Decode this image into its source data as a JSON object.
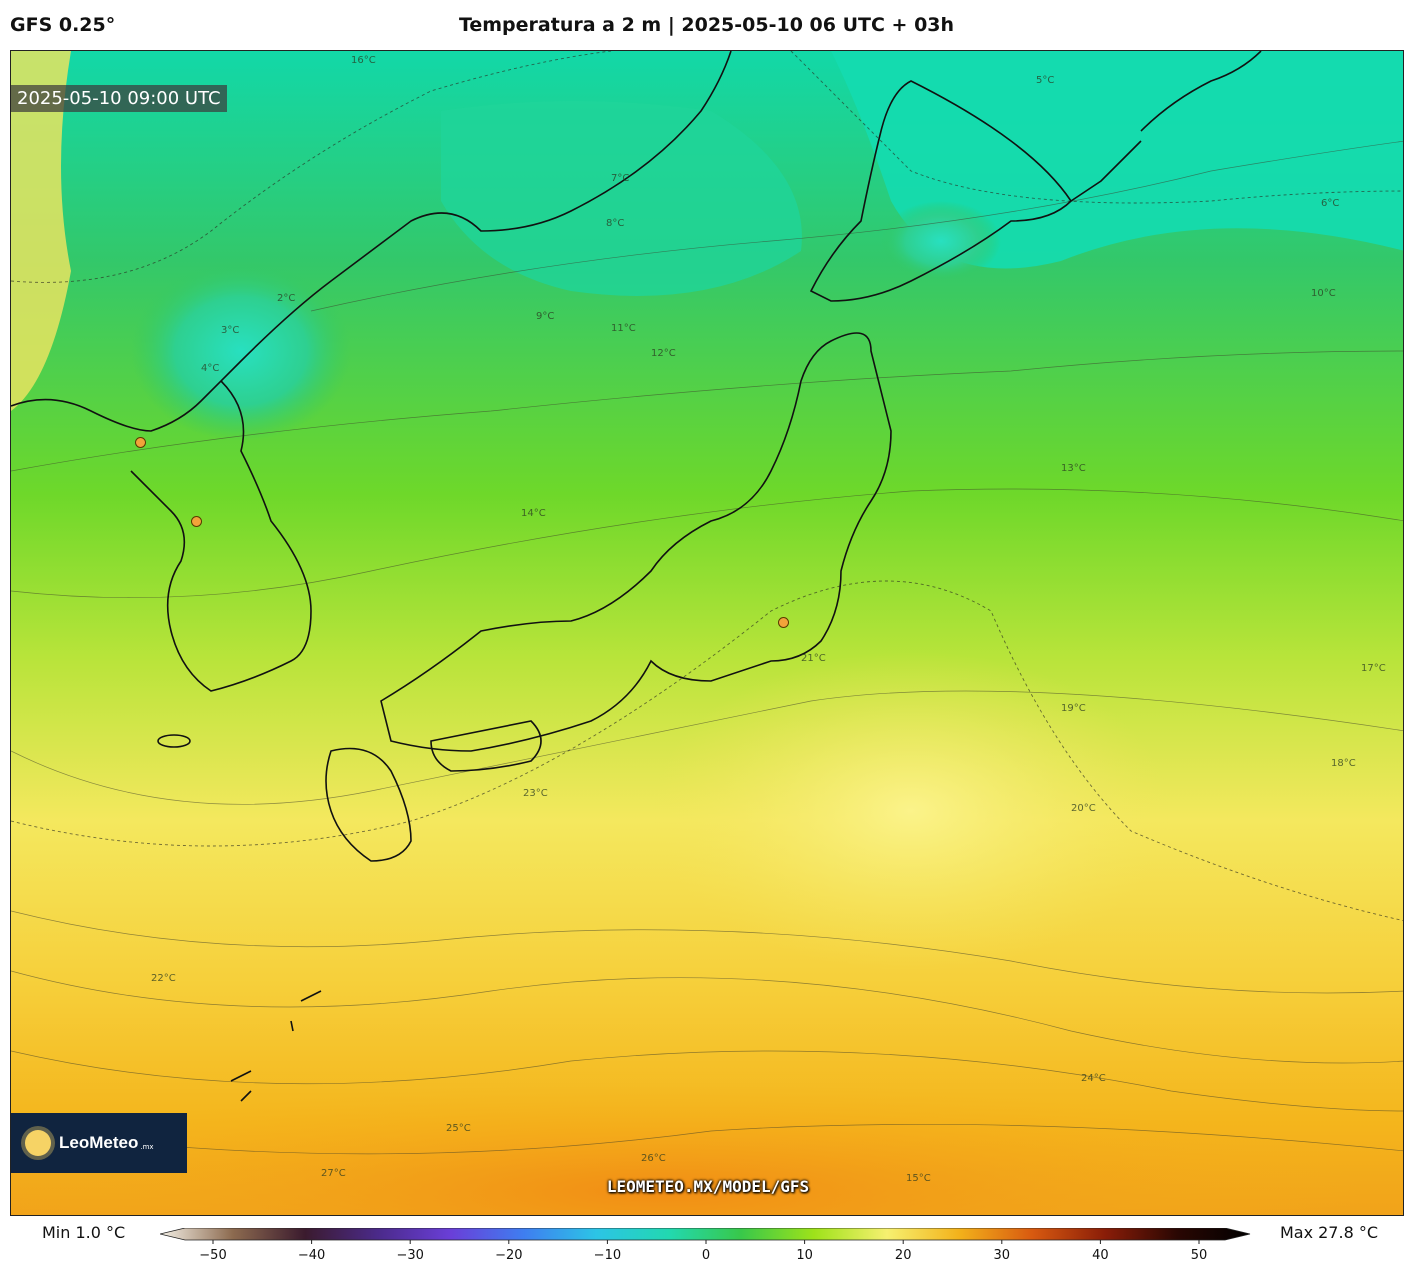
{
  "header": {
    "model": "GFS 0.25°",
    "title": "Temperatura a 2 m | 2025-05-10 06 UTC + 03h"
  },
  "map": {
    "timestamp": "2025-05-10 09:00 UTC",
    "url": "LEOMETEO.MX/MODEL/GFS",
    "logo": {
      "name": "LeoMeteo",
      "suffix": ".mx"
    },
    "contour_labels": [
      "16°C",
      "15°C",
      "13°C",
      "11°C",
      "9°C",
      "8°C",
      "7°C",
      "6°C",
      "5°C",
      "4°C",
      "3°C",
      "2°C",
      "14°C",
      "12°C",
      "10°C",
      "17°C",
      "18°C",
      "19°C",
      "20°C",
      "21°C",
      "22°C",
      "23°C",
      "24°C",
      "25°C",
      "26°C",
      "27°C"
    ]
  },
  "colorbar": {
    "min_label": "Min 1.0 °C",
    "max_label": "Max 27.8 °C",
    "ticks": [
      "−50",
      "−40",
      "−30",
      "−20",
      "−10",
      "0",
      "10",
      "20",
      "30",
      "40",
      "50"
    ],
    "colors": [
      "#f4f0e6",
      "#8c6a4f",
      "#3b1b2e",
      "#4b2a8a",
      "#6a3fd8",
      "#3f7df0",
      "#2cc4e6",
      "#22d8b0",
      "#38c84a",
      "#9ee21a",
      "#f6f070",
      "#f3b21b",
      "#d85a10",
      "#8a1d08",
      "#2a0703",
      "#000000"
    ]
  }
}
